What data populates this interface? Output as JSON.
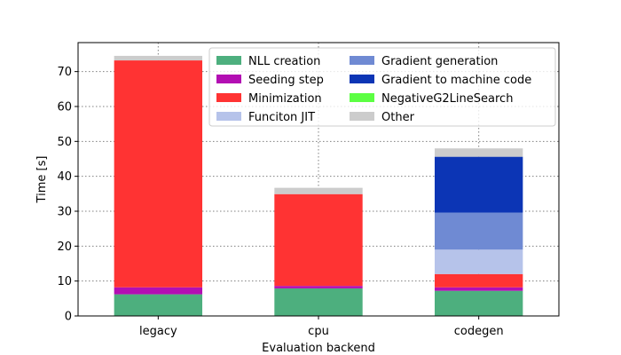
{
  "chart_data": {
    "type": "bar",
    "stacked": true,
    "title": "",
    "xlabel": "Evaluation backend",
    "ylabel": "Time [s]",
    "ylim": [
      0,
      78.3
    ],
    "yticks": [
      0,
      10,
      20,
      30,
      40,
      50,
      60,
      70
    ],
    "grid": true,
    "legend_position": "top-right",
    "categories": [
      "legacy",
      "cpu",
      "codegen"
    ],
    "series": [
      {
        "name": "NLL creation",
        "color": "#4daf7e",
        "values": [
          6.2,
          7.9,
          7.2
        ]
      },
      {
        "name": "Seeding step",
        "color": "#b30fb3",
        "values": [
          2.0,
          0.7,
          1.0
        ]
      },
      {
        "name": "Minimization",
        "color": "#ff3333",
        "values": [
          65.0,
          26.3,
          3.8
        ]
      },
      {
        "name": "Funciton JIT",
        "color": "#b6c3ea",
        "values": [
          0,
          0,
          7.0
        ]
      },
      {
        "name": "Gradient generation",
        "color": "#6f8ad3",
        "values": [
          0,
          0,
          10.6
        ]
      },
      {
        "name": "Gradient to machine code",
        "color": "#0c35b5",
        "values": [
          0,
          0,
          16.0
        ]
      },
      {
        "name": "NegativeG2LineSearch",
        "color": "#5cff43",
        "values": [
          0,
          0,
          0
        ]
      },
      {
        "name": "Other",
        "color": "#cccccc",
        "values": [
          1.3,
          1.8,
          2.4
        ]
      }
    ]
  }
}
